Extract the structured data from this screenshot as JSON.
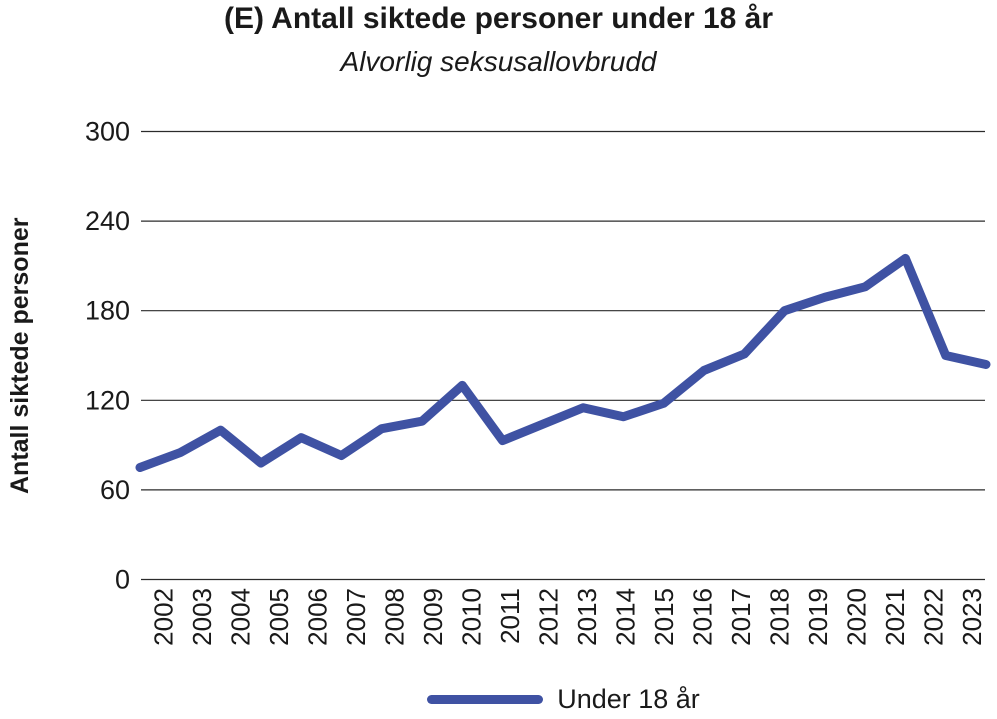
{
  "title": "(E) Antall siktede personer under 18 år",
  "subtitle": "Alvorlig seksusallovbrudd",
  "y_axis_label": "Antall siktede personer",
  "legend": {
    "label": "Under 18 år"
  },
  "colors": {
    "line": "#3f52a3",
    "grid": "#2b2b2b",
    "text": "#1a1a1a",
    "background": "#ffffff"
  },
  "chart_data": {
    "type": "line",
    "title": "(E) Antall siktede personer under 18 år",
    "subtitle": "Alvorlig seksusallovbrudd",
    "xlabel": "",
    "ylabel": "Antall siktede personer",
    "categories": [
      "2002",
      "2003",
      "2004",
      "2005",
      "2006",
      "2007",
      "2008",
      "2009",
      "2010",
      "2011",
      "2012",
      "2013",
      "2014",
      "2015",
      "2016",
      "2017",
      "2018",
      "2019",
      "2020",
      "2021",
      "2022",
      "2023"
    ],
    "series": [
      {
        "name": "Under 18 år",
        "color": "#3f52a3",
        "values": [
          75,
          85,
          100,
          78,
          95,
          83,
          101,
          106,
          130,
          93,
          104,
          115,
          109,
          118,
          140,
          151,
          180,
          189,
          196,
          215,
          150,
          144
        ]
      }
    ],
    "ylim": [
      0,
      300
    ],
    "yticks": [
      0,
      60,
      120,
      180,
      240,
      300
    ],
    "grid": "horizontal",
    "legend_position": "bottom",
    "x_tick_rotation": 90
  }
}
